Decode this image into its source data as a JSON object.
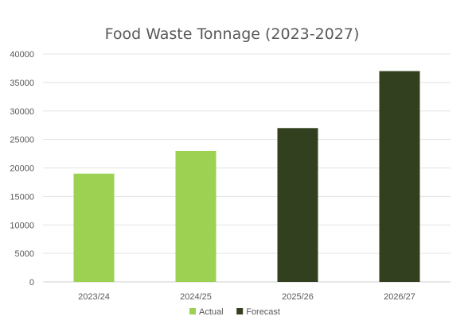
{
  "chart_data": {
    "type": "bar",
    "title": "Food Waste Tonnage (2023-2027)",
    "categories": [
      "2023/24",
      "2024/25",
      "2025/26",
      "2026/27"
    ],
    "values": [
      19000,
      23000,
      27000,
      37000
    ],
    "bar_kind": [
      "Actual",
      "Actual",
      "Forecast",
      "Forecast"
    ],
    "legend": [
      {
        "name": "Actual",
        "color": "#9dd151"
      },
      {
        "name": "Forecast",
        "color": "#334020"
      }
    ],
    "ylim": [
      0,
      40000
    ],
    "yticks": [
      "0",
      "5000",
      "10000",
      "15000",
      "20000",
      "25000",
      "30000",
      "35000",
      "40000"
    ],
    "xlabel": "",
    "ylabel": "",
    "grid": true,
    "legend_position": "bottom"
  }
}
